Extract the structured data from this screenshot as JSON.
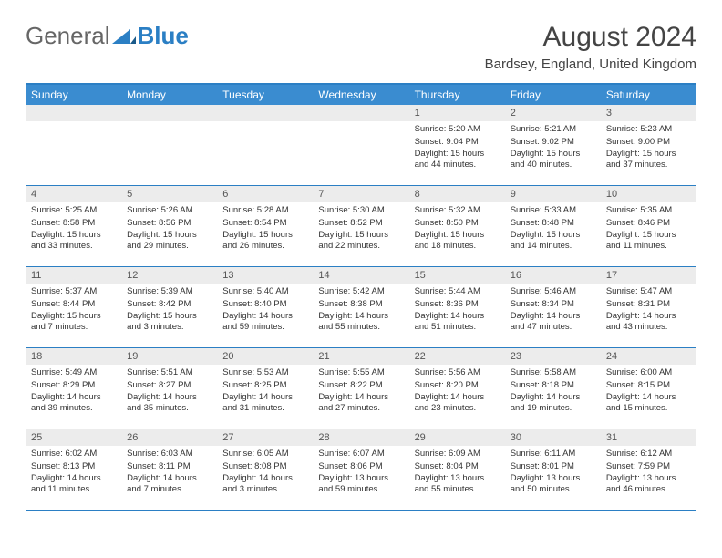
{
  "logo": {
    "text1": "General",
    "text2": "Blue"
  },
  "title": "August 2024",
  "location": "Bardsey, England, United Kingdom",
  "header_bg": "#3a8cd0",
  "accent_color": "#2b7fc4",
  "daynum_bg": "#ececec",
  "background": "#ffffff",
  "text_color": "#333333",
  "title_fontsize": 30,
  "location_fontsize": 15,
  "header_fontsize": 12,
  "cell_fontsize": 9.5,
  "day_names": [
    "Sunday",
    "Monday",
    "Tuesday",
    "Wednesday",
    "Thursday",
    "Friday",
    "Saturday"
  ],
  "weeks": [
    [
      null,
      null,
      null,
      null,
      {
        "d": "1",
        "sr": "5:20 AM",
        "ss": "9:04 PM",
        "dl": "15 hours and 44 minutes."
      },
      {
        "d": "2",
        "sr": "5:21 AM",
        "ss": "9:02 PM",
        "dl": "15 hours and 40 minutes."
      },
      {
        "d": "3",
        "sr": "5:23 AM",
        "ss": "9:00 PM",
        "dl": "15 hours and 37 minutes."
      }
    ],
    [
      {
        "d": "4",
        "sr": "5:25 AM",
        "ss": "8:58 PM",
        "dl": "15 hours and 33 minutes."
      },
      {
        "d": "5",
        "sr": "5:26 AM",
        "ss": "8:56 PM",
        "dl": "15 hours and 29 minutes."
      },
      {
        "d": "6",
        "sr": "5:28 AM",
        "ss": "8:54 PM",
        "dl": "15 hours and 26 minutes."
      },
      {
        "d": "7",
        "sr": "5:30 AM",
        "ss": "8:52 PM",
        "dl": "15 hours and 22 minutes."
      },
      {
        "d": "8",
        "sr": "5:32 AM",
        "ss": "8:50 PM",
        "dl": "15 hours and 18 minutes."
      },
      {
        "d": "9",
        "sr": "5:33 AM",
        "ss": "8:48 PM",
        "dl": "15 hours and 14 minutes."
      },
      {
        "d": "10",
        "sr": "5:35 AM",
        "ss": "8:46 PM",
        "dl": "15 hours and 11 minutes."
      }
    ],
    [
      {
        "d": "11",
        "sr": "5:37 AM",
        "ss": "8:44 PM",
        "dl": "15 hours and 7 minutes."
      },
      {
        "d": "12",
        "sr": "5:39 AM",
        "ss": "8:42 PM",
        "dl": "15 hours and 3 minutes."
      },
      {
        "d": "13",
        "sr": "5:40 AM",
        "ss": "8:40 PM",
        "dl": "14 hours and 59 minutes."
      },
      {
        "d": "14",
        "sr": "5:42 AM",
        "ss": "8:38 PM",
        "dl": "14 hours and 55 minutes."
      },
      {
        "d": "15",
        "sr": "5:44 AM",
        "ss": "8:36 PM",
        "dl": "14 hours and 51 minutes."
      },
      {
        "d": "16",
        "sr": "5:46 AM",
        "ss": "8:34 PM",
        "dl": "14 hours and 47 minutes."
      },
      {
        "d": "17",
        "sr": "5:47 AM",
        "ss": "8:31 PM",
        "dl": "14 hours and 43 minutes."
      }
    ],
    [
      {
        "d": "18",
        "sr": "5:49 AM",
        "ss": "8:29 PM",
        "dl": "14 hours and 39 minutes."
      },
      {
        "d": "19",
        "sr": "5:51 AM",
        "ss": "8:27 PM",
        "dl": "14 hours and 35 minutes."
      },
      {
        "d": "20",
        "sr": "5:53 AM",
        "ss": "8:25 PM",
        "dl": "14 hours and 31 minutes."
      },
      {
        "d": "21",
        "sr": "5:55 AM",
        "ss": "8:22 PM",
        "dl": "14 hours and 27 minutes."
      },
      {
        "d": "22",
        "sr": "5:56 AM",
        "ss": "8:20 PM",
        "dl": "14 hours and 23 minutes."
      },
      {
        "d": "23",
        "sr": "5:58 AM",
        "ss": "8:18 PM",
        "dl": "14 hours and 19 minutes."
      },
      {
        "d": "24",
        "sr": "6:00 AM",
        "ss": "8:15 PM",
        "dl": "14 hours and 15 minutes."
      }
    ],
    [
      {
        "d": "25",
        "sr": "6:02 AM",
        "ss": "8:13 PM",
        "dl": "14 hours and 11 minutes."
      },
      {
        "d": "26",
        "sr": "6:03 AM",
        "ss": "8:11 PM",
        "dl": "14 hours and 7 minutes."
      },
      {
        "d": "27",
        "sr": "6:05 AM",
        "ss": "8:08 PM",
        "dl": "14 hours and 3 minutes."
      },
      {
        "d": "28",
        "sr": "6:07 AM",
        "ss": "8:06 PM",
        "dl": "13 hours and 59 minutes."
      },
      {
        "d": "29",
        "sr": "6:09 AM",
        "ss": "8:04 PM",
        "dl": "13 hours and 55 minutes."
      },
      {
        "d": "30",
        "sr": "6:11 AM",
        "ss": "8:01 PM",
        "dl": "13 hours and 50 minutes."
      },
      {
        "d": "31",
        "sr": "6:12 AM",
        "ss": "7:59 PM",
        "dl": "13 hours and 46 minutes."
      }
    ]
  ]
}
